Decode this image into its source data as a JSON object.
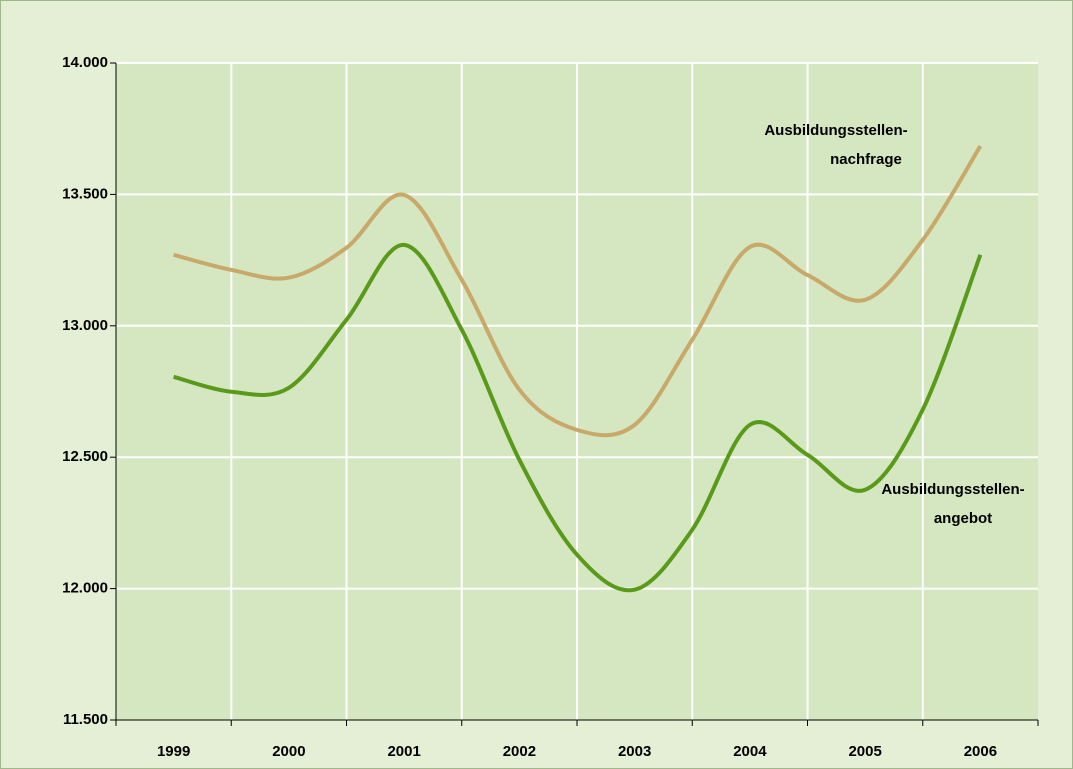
{
  "chart_data": {
    "type": "line",
    "categories": [
      "1999",
      null,
      "2000",
      null,
      "2001",
      null,
      "2002",
      null,
      "2003",
      null,
      "2004",
      null,
      "2005",
      null,
      "2006"
    ],
    "series": [
      {
        "name": "Ausbildungsstellennachfrage",
        "color": "#c8a96a",
        "values": [
          13270,
          13213,
          13183,
          13297,
          13498,
          13175,
          12757,
          12604,
          12623,
          12947,
          13300,
          13193,
          13099,
          13327,
          13684
        ]
      },
      {
        "name": "Ausbildungsstellenangebot",
        "color": "#5a9a1a",
        "values": [
          12806,
          12749,
          12764,
          13023,
          13308,
          12985,
          12490,
          12129,
          11996,
          12224,
          12623,
          12509,
          12376,
          12681,
          13270
        ]
      }
    ],
    "annotations": [
      [
        "Ausbildungsstellen-",
        "nachfrage"
      ],
      [
        "Ausbildungsstellen-",
        "angebot"
      ]
    ],
    "ylim": [
      11500,
      14000
    ],
    "yticks": [
      {
        "value": 11500,
        "label": "11.500"
      },
      {
        "value": 12000,
        "label": "12.000"
      },
      {
        "value": 12500,
        "label": "12.500"
      },
      {
        "value": 13000,
        "label": "13.000"
      },
      {
        "value": 13500,
        "label": "13.500"
      },
      {
        "value": 14000,
        "label": "14.000"
      }
    ],
    "grid": true
  }
}
